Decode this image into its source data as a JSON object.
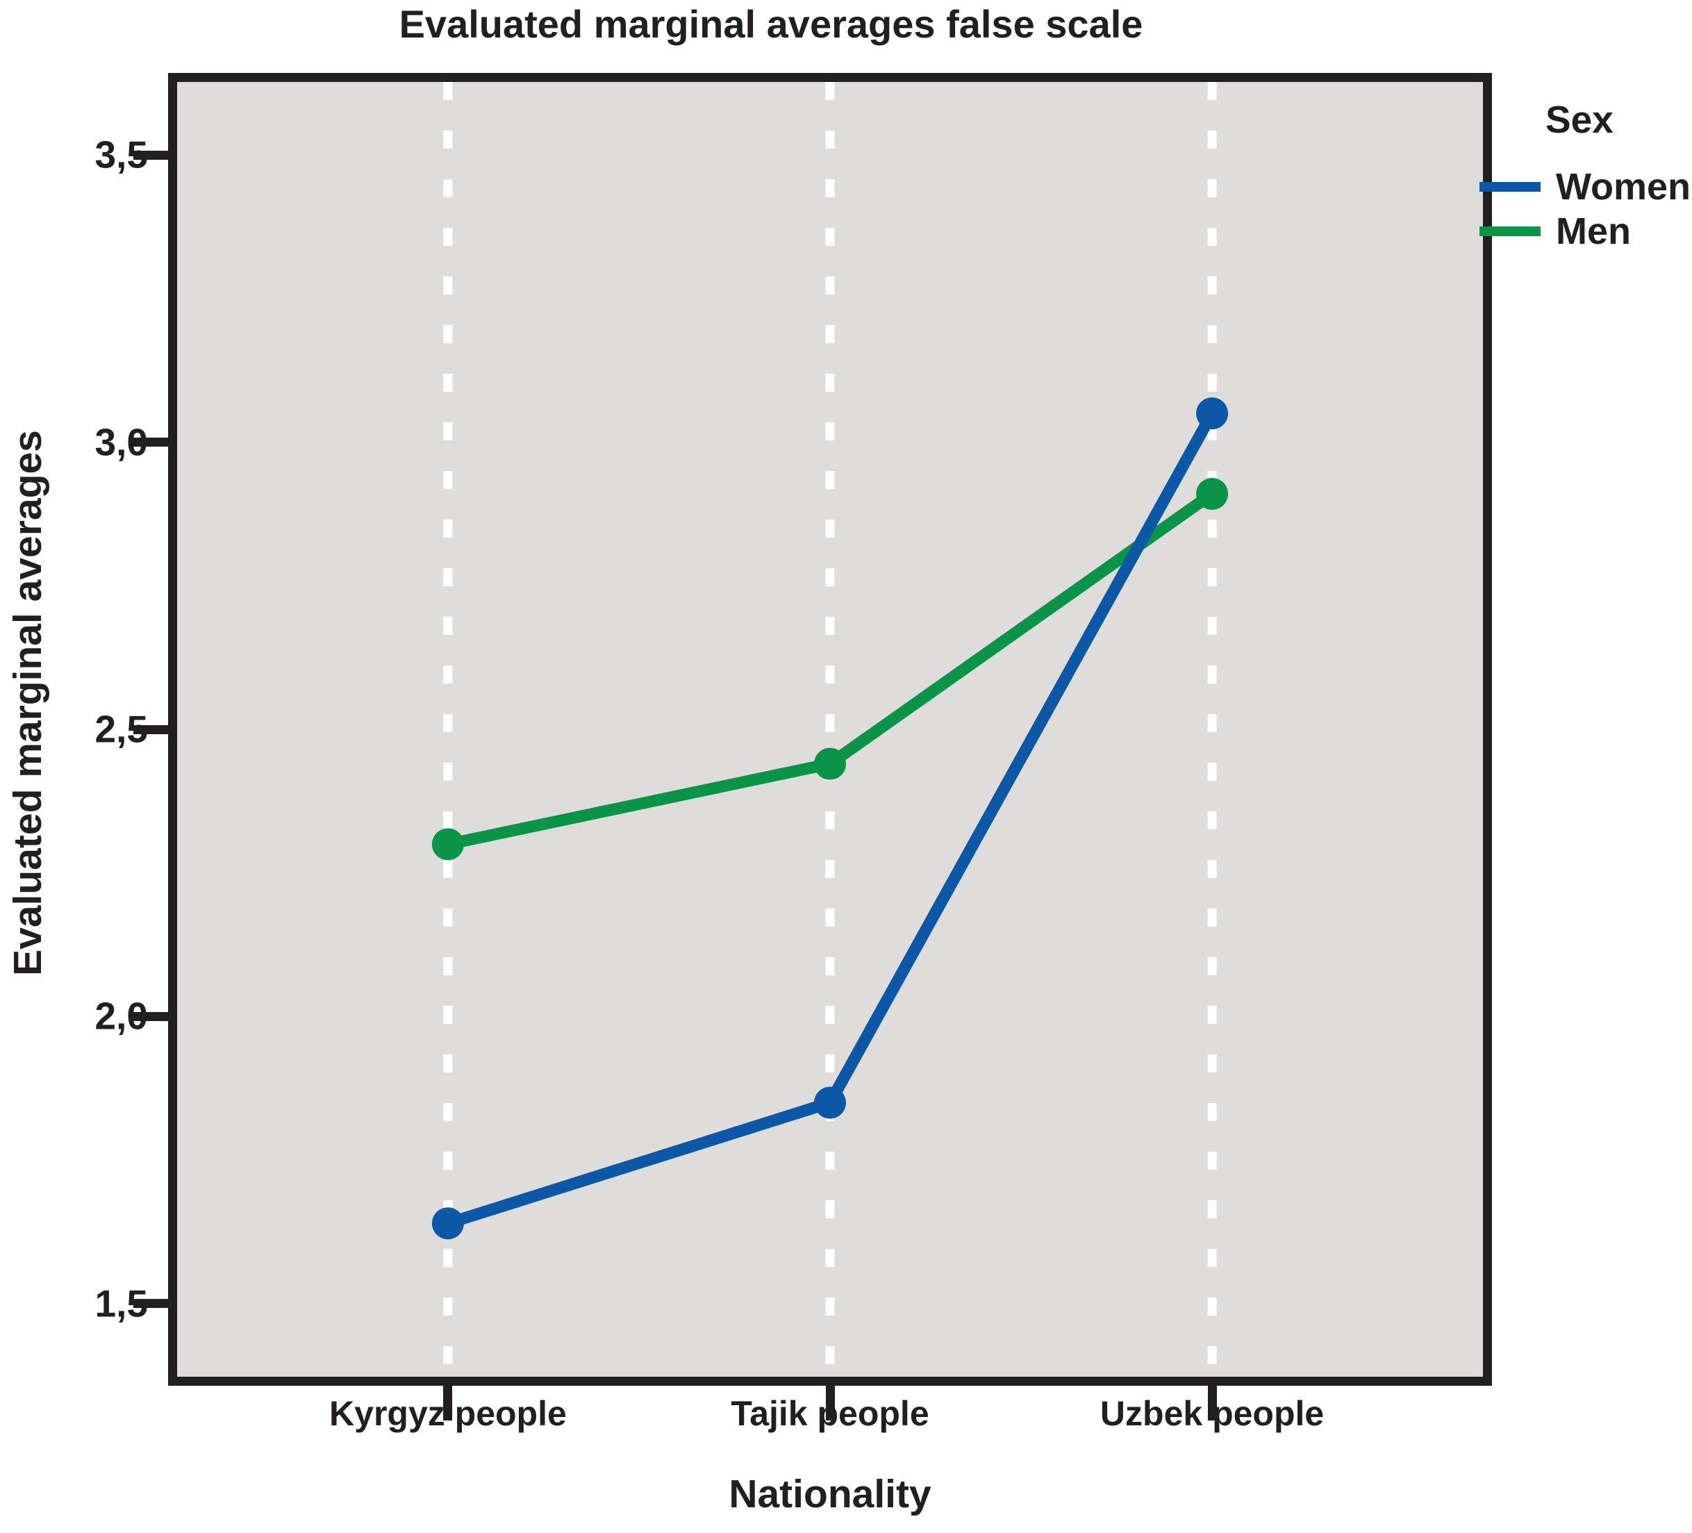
{
  "chart_data": {
    "type": "line",
    "title": "Evaluated marginal averages false scale",
    "xlabel": "Nationality",
    "ylabel": "Evaluated marginal averages",
    "categories": [
      "Kyrgyz people",
      "Tajik people",
      "Uzbek people"
    ],
    "series": [
      {
        "name": "Women",
        "color": "#0d57a7",
        "values": [
          1.64,
          1.85,
          3.05
        ]
      },
      {
        "name": "Men",
        "color": "#0b9447",
        "values": [
          2.3,
          2.44,
          2.91
        ]
      }
    ],
    "yticks": [
      3.5,
      3.0,
      2.5,
      2.0,
      1.5
    ],
    "ytick_labels": [
      "3,5",
      "3,0",
      "2,5",
      "2,0",
      "1,5"
    ],
    "ylim": [
      1.373,
      3.627
    ],
    "decimal_separator": ",",
    "grid": "vertical white dashed gridlines at each category",
    "legend": {
      "title": "Sex",
      "position": "top-right",
      "entries": [
        "Women",
        "Men"
      ]
    },
    "plot_background": "#dedddc",
    "frame_color": "#231f20",
    "gridline_color": "#ffffff"
  }
}
